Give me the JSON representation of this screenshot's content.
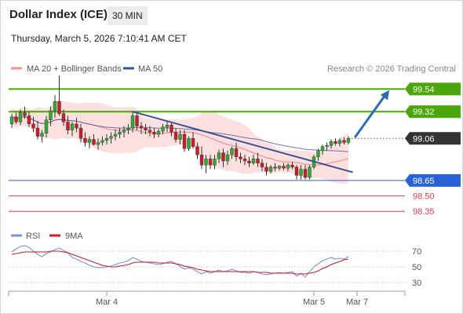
{
  "header": {
    "title": "Dollar Index (ICE)",
    "timeframe": "30 MIN",
    "datetime": "Thursday, March 5, 2026 7:10:41 AM CET"
  },
  "credit": "Research © 2026 Trading Central",
  "colors": {
    "bullish": "#33a833",
    "bearish": "#c81e2b",
    "wick": "#333333",
    "ma20": "#f08f8f",
    "band_fill": "#fbd3d3",
    "ma50": "#36529a",
    "trendline": "#3e4f93",
    "resistance": "#4aa60a",
    "support_primary": "#2962d6",
    "support_secondary": "#e23b4a",
    "current_label": "#333333",
    "arrow": "#2a6db3",
    "rsi": "#7a93d6",
    "rsi_ma": "#c81e2b"
  },
  "chart_data": [
    {
      "type": "candlestick",
      "title": "",
      "legend": [
        {
          "name": "MA 20 + Bollinger Bands",
          "color": "#f08f8f"
        },
        {
          "name": "MA 50",
          "color": "#36529a"
        }
      ],
      "legend_position": "top-left",
      "ylim": [
        98.26,
        99.65
      ],
      "x_ticks": [
        {
          "label": "Mar 4",
          "index": 22
        },
        {
          "label": "Mar 5",
          "index": 70
        },
        {
          "label": "Mar 7",
          "index": 80
        }
      ],
      "levels": [
        {
          "value": 99.54,
          "label": "99.54",
          "kind": "resistance",
          "style": "box"
        },
        {
          "value": 99.32,
          "label": "99.32",
          "kind": "resistance",
          "style": "box"
        },
        {
          "value": 99.06,
          "label": "99.06",
          "kind": "current",
          "style": "box"
        },
        {
          "value": 98.65,
          "label": "98.65",
          "kind": "support_primary",
          "style": "box"
        },
        {
          "value": 98.5,
          "label": "98.50",
          "kind": "support_secondary",
          "style": "text"
        },
        {
          "value": 98.35,
          "label": "98.35",
          "kind": "support_secondary",
          "style": "text"
        }
      ],
      "trendline": {
        "from": {
          "index": 28,
          "value": 99.32
        },
        "to": {
          "index": 79,
          "value": 98.73
        }
      },
      "arrow": {
        "from": {
          "index": 79.5,
          "value": 99.07
        },
        "to": {
          "index": 87.5,
          "value": 99.53
        }
      },
      "candles": [
        [
          99.2,
          99.3,
          99.16,
          99.27
        ],
        [
          99.27,
          99.31,
          99.2,
          99.22
        ],
        [
          99.22,
          99.34,
          99.19,
          99.31
        ],
        [
          99.31,
          99.37,
          99.25,
          99.28
        ],
        [
          99.28,
          99.32,
          99.17,
          99.2
        ],
        [
          99.2,
          99.27,
          99.12,
          99.16
        ],
        [
          99.16,
          99.23,
          99.05,
          99.08
        ],
        [
          99.08,
          99.14,
          99.02,
          99.11
        ],
        [
          99.11,
          99.28,
          99.07,
          99.24
        ],
        [
          99.24,
          99.37,
          99.18,
          99.33
        ],
        [
          99.33,
          99.48,
          99.26,
          99.42
        ],
        [
          99.42,
          99.67,
          99.28,
          99.3
        ],
        [
          99.3,
          99.34,
          99.18,
          99.22
        ],
        [
          99.22,
          99.28,
          99.1,
          99.14
        ],
        [
          99.14,
          99.22,
          99.08,
          99.2
        ],
        [
          99.2,
          99.26,
          99.12,
          99.16
        ],
        [
          99.16,
          99.2,
          99.02,
          99.06
        ],
        [
          99.06,
          99.12,
          98.98,
          99.02
        ],
        [
          99.02,
          99.08,
          98.96,
          99.05
        ],
        [
          99.05,
          99.1,
          98.99,
          99.0
        ],
        [
          99.0,
          99.06,
          98.95,
          99.02
        ],
        [
          99.02,
          99.08,
          98.99,
          99.04
        ],
        [
          99.04,
          99.1,
          99.0,
          99.06
        ],
        [
          99.06,
          99.12,
          99.01,
          99.08
        ],
        [
          99.08,
          99.15,
          99.04,
          99.1
        ],
        [
          99.1,
          99.16,
          99.06,
          99.12
        ],
        [
          99.12,
          99.18,
          99.07,
          99.14
        ],
        [
          99.14,
          99.2,
          99.1,
          99.16
        ],
        [
          99.16,
          99.32,
          99.12,
          99.28
        ],
        [
          99.28,
          99.3,
          99.14,
          99.18
        ],
        [
          99.18,
          99.22,
          99.1,
          99.16
        ],
        [
          99.16,
          99.2,
          99.1,
          99.14
        ],
        [
          99.14,
          99.18,
          99.08,
          99.12
        ],
        [
          99.12,
          99.16,
          99.06,
          99.1
        ],
        [
          99.1,
          99.15,
          99.07,
          99.13
        ],
        [
          99.13,
          99.2,
          99.1,
          99.17
        ],
        [
          99.17,
          99.23,
          99.12,
          99.19
        ],
        [
          99.19,
          99.22,
          99.08,
          99.12
        ],
        [
          99.12,
          99.16,
          99.02,
          99.05
        ],
        [
          99.05,
          99.14,
          99.0,
          99.1
        ],
        [
          99.1,
          99.14,
          98.93,
          98.96
        ],
        [
          98.96,
          99.08,
          98.94,
          99.06
        ],
        [
          99.06,
          99.12,
          98.96,
          98.98
        ],
        [
          98.98,
          99.02,
          98.86,
          98.9
        ],
        [
          98.9,
          98.98,
          98.76,
          98.8
        ],
        [
          98.8,
          98.9,
          98.72,
          98.86
        ],
        [
          98.86,
          98.9,
          98.76,
          98.8
        ],
        [
          98.8,
          98.9,
          98.76,
          98.86
        ],
        [
          98.86,
          98.95,
          98.82,
          98.92
        ],
        [
          98.92,
          98.96,
          98.78,
          98.84
        ],
        [
          98.84,
          98.94,
          98.8,
          98.9
        ],
        [
          98.9,
          98.98,
          98.86,
          98.96
        ],
        [
          98.96,
          99.02,
          98.84,
          98.88
        ],
        [
          98.88,
          98.92,
          98.82,
          98.86
        ],
        [
          98.86,
          98.9,
          98.8,
          98.84
        ],
        [
          98.84,
          98.88,
          98.78,
          98.82
        ],
        [
          98.82,
          98.9,
          98.8,
          98.86
        ],
        [
          98.86,
          98.92,
          98.78,
          98.82
        ],
        [
          98.82,
          98.86,
          98.74,
          98.78
        ],
        [
          98.78,
          98.82,
          98.7,
          98.74
        ],
        [
          98.74,
          98.8,
          98.72,
          98.78
        ],
        [
          98.78,
          98.82,
          98.74,
          98.77
        ],
        [
          98.77,
          98.8,
          98.75,
          98.79
        ],
        [
          98.79,
          98.82,
          98.75,
          98.77
        ],
        [
          98.77,
          98.82,
          98.74,
          98.8
        ],
        [
          98.8,
          98.83,
          98.76,
          98.78
        ],
        [
          98.78,
          98.8,
          98.66,
          98.7
        ],
        [
          98.7,
          98.8,
          98.66,
          98.76
        ],
        [
          98.76,
          98.8,
          98.66,
          98.68
        ],
        [
          98.68,
          98.8,
          98.66,
          98.78
        ],
        [
          98.78,
          98.9,
          98.76,
          98.88
        ],
        [
          98.88,
          98.96,
          98.84,
          98.94
        ],
        [
          98.94,
          99.0,
          98.9,
          98.98
        ],
        [
          98.98,
          99.02,
          98.94,
          98.99
        ],
        [
          98.99,
          99.05,
          98.96,
          99.03
        ],
        [
          99.03,
          99.06,
          98.99,
          99.01
        ],
        [
          99.01,
          99.06,
          98.98,
          99.04
        ],
        [
          99.04,
          99.07,
          99.0,
          99.02
        ],
        [
          99.02,
          99.08,
          99.0,
          99.06
        ]
      ]
    },
    {
      "type": "line",
      "title": "",
      "legend": [
        {
          "name": "RSI",
          "color": "#7a93d6"
        },
        {
          "name": "9MA",
          "color": "#c81e2b"
        }
      ],
      "ylim": [
        20,
        80
      ],
      "y_ticks": [
        70,
        50,
        30
      ],
      "series": [
        {
          "name": "RSI",
          "values": [
            69,
            73,
            76,
            77,
            75,
            70,
            66,
            63,
            67,
            69,
            72,
            74,
            71,
            68,
            62,
            60,
            57,
            55,
            52,
            50,
            49,
            49,
            50,
            51,
            53,
            55,
            56,
            58,
            62,
            60,
            57,
            56,
            55,
            54,
            53,
            54,
            56,
            57,
            54,
            51,
            47,
            49,
            47,
            44,
            41,
            44,
            42,
            44,
            46,
            44,
            45,
            47,
            45,
            43,
            43,
            42,
            44,
            43,
            41,
            40,
            41,
            42,
            43,
            42,
            43,
            44,
            38,
            42,
            37,
            44,
            50,
            54,
            58,
            60,
            62,
            60,
            61,
            60,
            63
          ]
        },
        {
          "name": "9MA",
          "values": [
            66,
            67,
            68,
            69,
            69,
            69,
            69,
            69,
            69,
            70,
            70,
            70,
            69,
            68,
            66,
            64,
            62,
            60,
            58,
            56,
            54,
            52,
            51,
            50,
            50,
            51,
            52,
            53,
            55,
            56,
            56,
            56,
            56,
            56,
            55,
            55,
            55,
            55,
            54,
            53,
            51,
            50,
            49,
            47,
            46,
            45,
            44,
            44,
            44,
            44,
            44,
            44,
            44,
            44,
            44,
            44,
            44,
            43,
            43,
            43,
            42,
            42,
            42,
            42,
            42,
            42,
            41,
            41,
            41,
            42,
            43,
            45,
            48,
            50,
            53,
            55,
            57,
            59,
            60
          ]
        }
      ]
    }
  ]
}
